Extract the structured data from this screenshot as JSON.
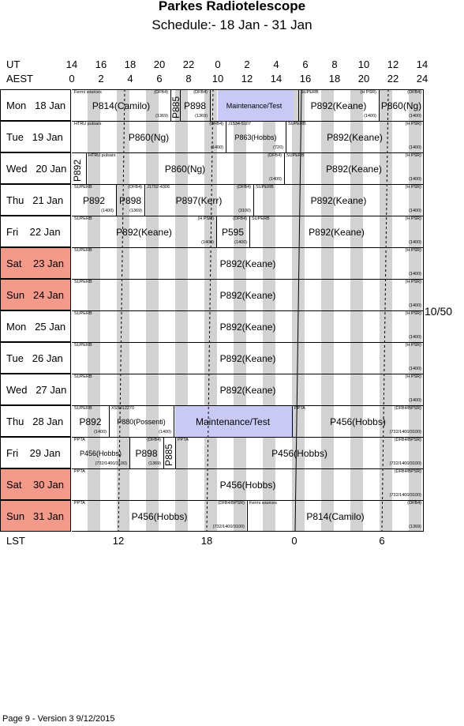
{
  "title": "Parkes Radiotelescope",
  "subtitle": "Schedule:- 18 Jan - 31 Jan",
  "axes": {
    "ut_label": "UT",
    "aest_label": "AEST",
    "lst_label": "LST",
    "ut_ticks": [
      "14",
      "16",
      "18",
      "20",
      "22",
      "0",
      "2",
      "4",
      "6",
      "8",
      "10",
      "12",
      "14"
    ],
    "aest_ticks": [
      "0",
      "2",
      "4",
      "6",
      "8",
      "10",
      "12",
      "14",
      "16",
      "18",
      "20",
      "22",
      "24"
    ],
    "lst_ticks": [
      "12",
      "18",
      "0",
      "6"
    ]
  },
  "days": [
    {
      "label": "Mon   18 Jan",
      "weekend": false
    },
    {
      "label": "Tue   19 Jan",
      "weekend": false
    },
    {
      "label": "Wed   20 Jan",
      "weekend": false
    },
    {
      "label": "Thu   21 Jan",
      "weekend": false
    },
    {
      "label": "Fri    22 Jan",
      "weekend": false
    },
    {
      "label": "Sat    23 Jan",
      "weekend": true
    },
    {
      "label": "Sun   24 Jan",
      "weekend": true
    },
    {
      "label": "Mon   25 Jan",
      "weekend": false
    },
    {
      "label": "Tue   26 Jan",
      "weekend": false
    },
    {
      "label": "Wed   27 Jan",
      "weekend": false
    },
    {
      "label": "Thu   28 Jan",
      "weekend": false
    },
    {
      "label": "Fri    29 Jan",
      "weekend": false
    },
    {
      "label": "Sat    30 Jan",
      "weekend": true
    },
    {
      "label": "Sun   31 Jan",
      "weekend": true
    }
  ],
  "weekend_color": "#f49a8b",
  "maintenance_color": "#c9c9f6",
  "sessions": [
    {
      "row": 0,
      "text": "Fermi sources",
      "rx": "(DFB4)",
      "rxb": "(1369)",
      "main": "P814(Camilo)"
    },
    {
      "row": 0,
      "main": "P885",
      "vertical": true
    },
    {
      "row": 0,
      "rx": "(DFB4)",
      "rxb": "(1369)",
      "main": "P898"
    },
    {
      "row": 0,
      "main": "Maintenance/Test",
      "small": true
    },
    {
      "row": 0,
      "text": "SUPERB",
      "rx": "(H PSR)",
      "rxb": "(1400)",
      "main": "P892(Keane)"
    },
    {
      "row": 0,
      "rx": "(DFB4)",
      "rxb": "(1400)",
      "main": "P860(Ng)"
    },
    {
      "row": 1,
      "text": "HTRU pulsars",
      "rx": "(DFB4)",
      "rxb": "(1400)",
      "main": "P860(Ng)"
    },
    {
      "row": 1,
      "text": "J1534-5107",
      "rxb": "(720)",
      "main": "P863(Hobbs)",
      "small": true
    },
    {
      "row": 1,
      "text": "SUPERB",
      "rx": "(H PSR)",
      "rxb": "(1400)",
      "main": "P892(Keane)"
    },
    {
      "row": 2,
      "main": "P892",
      "vertical": true
    },
    {
      "row": 2,
      "text": "HTRU pulsars",
      "rx": "(DFB4)",
      "rxb": "(1400)",
      "main": "P860(Ng)"
    },
    {
      "row": 2,
      "text": "SUPERB",
      "rx": "(H PSR)",
      "rxb": "(1400)",
      "main": "P892(Keane)"
    },
    {
      "row": 3,
      "text": "SUPERB",
      "rxb": "(1400)",
      "main": "P892"
    },
    {
      "row": 3,
      "rx": "(DFB4)",
      "rxb": "(1369)",
      "main": "P898"
    },
    {
      "row": 3,
      "text": "J1702-4306",
      "rx": "(DFB4)",
      "rxb": "(3100)",
      "main": "P897(Kerr)"
    },
    {
      "row": 3,
      "text": "SUPERB",
      "rx": "(H PSR)",
      "rxb": "(1400)",
      "main": "P892(Keane)"
    },
    {
      "row": 4,
      "text": "SUPERB",
      "rx": "(H PSR)",
      "rxb": "(1400)",
      "main": "P892(Keane)"
    },
    {
      "row": 4,
      "rx": "(DFB4)",
      "rxb": "(1400)",
      "main": "P595"
    },
    {
      "row": 4,
      "text": "SUPERB",
      "rx": "(H PSR)",
      "rxb": "(1400)",
      "main": "P892(Keane)"
    },
    {
      "row": 5,
      "text": "SUPERB",
      "rx": "(H PSR)",
      "rxb": "(1400)",
      "main": "P892(Keane)"
    },
    {
      "row": 6,
      "text": "SUPERB",
      "rx": "(H PSR)",
      "rxb": "(1400)",
      "main": "P892(Keane)"
    },
    {
      "row": 7,
      "text": "SUPERB",
      "rx": "(H PSR)",
      "rxb": "(1400)",
      "main": "P892(Keane)"
    },
    {
      "row": 8,
      "text": "SUPERB",
      "rx": "(H PSR)",
      "rxb": "(1400)",
      "main": "P892(Keane)"
    },
    {
      "row": 9,
      "text": "SUPERB",
      "rx": "(H PSR)",
      "rxb": "(1400)",
      "main": "P892(Keane)"
    },
    {
      "row": 10,
      "text": "SUPERB",
      "rxb": "(1400)",
      "main": "P892"
    },
    {
      "row": 10,
      "text": "XSSJ12270",
      "rxb": "(1400)",
      "main": "P880(Possenti)",
      "small": true
    },
    {
      "row": 10,
      "main": "Maintenance/Test"
    },
    {
      "row": 10,
      "text": "PPTA",
      "rx": "(DFB4/BPSR)",
      "rxb": "(732/1400/3100)",
      "main": "P456(Hobbs)"
    },
    {
      "row": 11,
      "text": "PPTA",
      "rxb": "(732/1400/3100)",
      "main": "P456(Hobbs)",
      "small": true
    },
    {
      "row": 11,
      "rx": "(DFB4)",
      "rxb": "(1369)",
      "main": "P898"
    },
    {
      "row": 11,
      "main": "P885",
      "vertical": true
    },
    {
      "row": 11,
      "text": "PPTA",
      "rx": "(DFB4/BPSR)",
      "rxb": "(732/1400/3100)",
      "main": "P456(Hobbs)"
    },
    {
      "row": 12,
      "text": "PPTA",
      "rx": "(DFB4/BPSR)",
      "rxb": "(732/1400/3100)",
      "main": "P456(Hobbs)"
    },
    {
      "row": 13,
      "text": "PPTA",
      "rx": "(DFB4/BPSR)",
      "rxb": "(732/1400/3100)",
      "main": "P456(Hobbs)"
    },
    {
      "row": 13,
      "text": "Fermi sources",
      "rx": "(DFB4)",
      "rxb": "(1369)",
      "main": "P814(Camilo)"
    }
  ],
  "side_note": "10/50",
  "footer": "Page 9 - Version 3  9/12/2015"
}
